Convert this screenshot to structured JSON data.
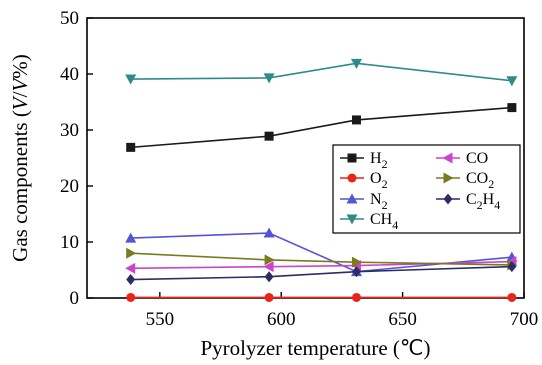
{
  "chart_data": {
    "type": "line",
    "xlabel": "Pyrolyzer temperature (℃)",
    "ylabel_parts": [
      "Gas components (",
      "V",
      "/",
      "V",
      "%)"
    ],
    "xlim": [
      520,
      700
    ],
    "ylim": [
      0,
      50
    ],
    "xticks": [
      550,
      600,
      650,
      700
    ],
    "yticks": [
      0,
      10,
      20,
      30,
      40,
      50
    ],
    "grid": false,
    "legend_position": "right",
    "x": [
      538,
      595,
      631,
      695
    ],
    "series": [
      {
        "name": "H2",
        "label_html": [
          "H",
          "2",
          ""
        ],
        "color": "#1a1a1a",
        "marker": "square",
        "values": [
          26.9,
          28.9,
          31.8,
          34.0
        ]
      },
      {
        "name": "O2",
        "label_html": [
          "O",
          "2",
          ""
        ],
        "color": "#e8241c",
        "marker": "circle",
        "values": [
          0.1,
          0.1,
          0.1,
          0.1
        ]
      },
      {
        "name": "N2",
        "label_html": [
          "N",
          "2",
          ""
        ],
        "color": "#5454d8",
        "marker": "triangle-up",
        "values": [
          10.7,
          11.6,
          4.7,
          7.3
        ]
      },
      {
        "name": "CH4",
        "label_html": [
          "CH",
          "4",
          ""
        ],
        "color": "#2e8b87",
        "marker": "triangle-down",
        "values": [
          39.1,
          39.3,
          41.9,
          38.8
        ]
      },
      {
        "name": "CO",
        "label_html": [
          "CO",
          "",
          ""
        ],
        "color": "#cc44cc",
        "marker": "triangle-left",
        "values": [
          5.3,
          5.6,
          5.8,
          6.5
        ]
      },
      {
        "name": "CO2",
        "label_html": [
          "CO",
          "2",
          ""
        ],
        "color": "#7a7a1e",
        "marker": "triangle-right",
        "values": [
          8.0,
          6.8,
          6.4,
          5.9
        ]
      },
      {
        "name": "C2H4",
        "label_html": [
          "C",
          "2",
          "H",
          "4"
        ],
        "color": "#2d2d66",
        "marker": "diamond",
        "values": [
          3.3,
          3.8,
          4.7,
          5.6
        ]
      }
    ]
  }
}
